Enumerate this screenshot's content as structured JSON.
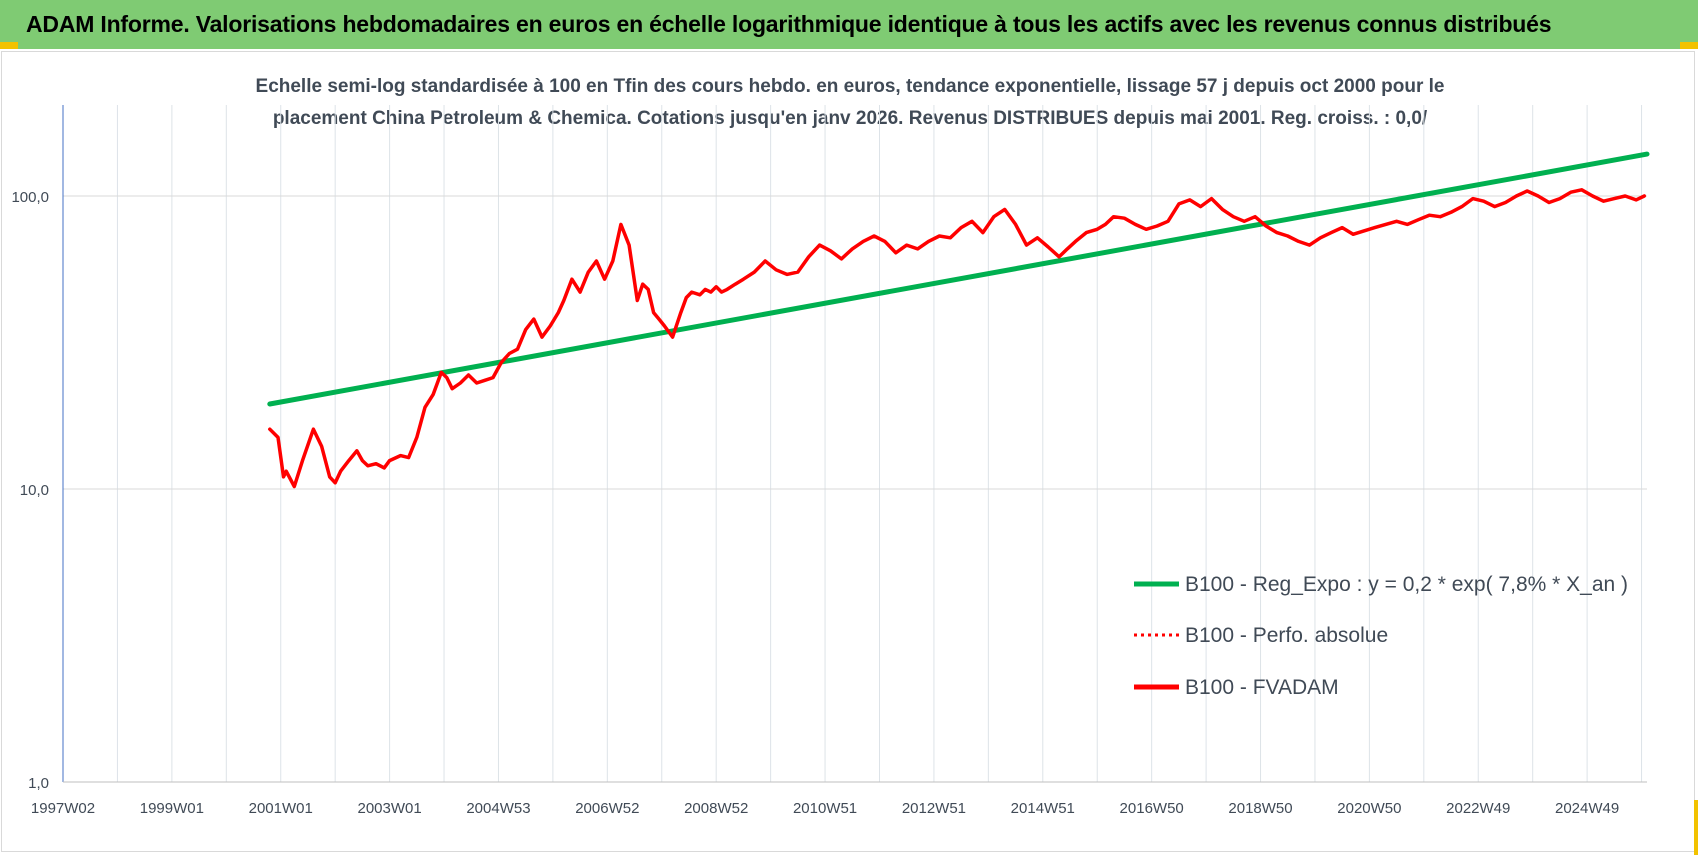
{
  "header": {
    "title": "ADAM Informe. Valorisations hebdomadaires en euros en échelle logarithmique identique à tous les actifs avec les revenus connus distribués"
  },
  "colors": {
    "header_bg": "#7fcb73",
    "trend": "#00b050",
    "series": "#ff0000",
    "grid": "#d9d9d9",
    "axis_text": "#404a56",
    "corner_accent": "#f2c200"
  },
  "chart_data": {
    "type": "line",
    "title_lines": [
      "Echelle semi-log standardisée à 100 en Tfin des cours hebdo. en euros, tendance exponentielle, lissage 57 j depuis oct 2000 pour le",
      "placement China Petroleum & Chemica. Cotations jusqu'en janv 2026.  Revenus DISTRIBUES depuis mai 2001. Reg. croiss. : 0,0/"
    ],
    "y_scale": "log",
    "ylim": [
      1,
      200
    ],
    "y_ticks": [
      {
        "value": 1,
        "label": "1,0"
      },
      {
        "value": 10,
        "label": "10,0"
      },
      {
        "value": 100,
        "label": "100,0"
      }
    ],
    "xlim": [
      1997.0,
      2026.1
    ],
    "x_ticks": [
      {
        "x": 1997.0,
        "label": "1997W02"
      },
      {
        "x": 1999.0,
        "label": "1999W01"
      },
      {
        "x": 2001.0,
        "label": "2001W01"
      },
      {
        "x": 2003.0,
        "label": "2003W01"
      },
      {
        "x": 2005.0,
        "label": "2004W53"
      },
      {
        "x": 2007.0,
        "label": "2006W52"
      },
      {
        "x": 2009.0,
        "label": "2008W52"
      },
      {
        "x": 2011.0,
        "label": "2010W51"
      },
      {
        "x": 2013.0,
        "label": "2012W51"
      },
      {
        "x": 2015.0,
        "label": "2014W51"
      },
      {
        "x": 2017.0,
        "label": "2016W50"
      },
      {
        "x": 2019.0,
        "label": "2018W50"
      },
      {
        "x": 2021.0,
        "label": "2020W50"
      },
      {
        "x": 2023.0,
        "label": "2022W49"
      },
      {
        "x": 2025.0,
        "label": "2024W49"
      }
    ],
    "legend_position": "right",
    "series": [
      {
        "name": "B100 - Reg_Expo : y = 0,2 * exp( 7,8% *  X_an )",
        "style": "solid",
        "color": "#00b050",
        "x": [
          2000.8,
          2026.1
        ],
        "y": [
          19.5,
          139
        ]
      },
      {
        "name": "B100 - Perfo. absolue",
        "style": "dotted",
        "color": "#ff0000",
        "x": [],
        "y": []
      },
      {
        "name": "B100 - FVADAM",
        "style": "solid",
        "color": "#ff0000",
        "x": [
          2000.8,
          2000.95,
          2001.05,
          2001.1,
          2001.25,
          2001.4,
          2001.6,
          2001.75,
          2001.9,
          2002.0,
          2002.1,
          2002.25,
          2002.4,
          2002.5,
          2002.6,
          2002.75,
          2002.9,
          2003.0,
          2003.2,
          2003.35,
          2003.5,
          2003.65,
          2003.8,
          2003.95,
          2004.05,
          2004.15,
          2004.3,
          2004.45,
          2004.6,
          2004.75,
          2004.9,
          2005.05,
          2005.2,
          2005.35,
          2005.5,
          2005.65,
          2005.8,
          2005.95,
          2006.1,
          2006.2,
          2006.35,
          2006.5,
          2006.65,
          2006.8,
          2006.95,
          2007.1,
          2007.25,
          2007.4,
          2007.55,
          2007.65,
          2007.75,
          2007.85,
          2007.95,
          2008.05,
          2008.2,
          2008.35,
          2008.45,
          2008.55,
          2008.7,
          2008.8,
          2008.9,
          2009.0,
          2009.1,
          2009.2,
          2009.35,
          2009.5,
          2009.7,
          2009.9,
          2010.1,
          2010.3,
          2010.5,
          2010.7,
          2010.9,
          2011.1,
          2011.3,
          2011.5,
          2011.7,
          2011.9,
          2012.1,
          2012.3,
          2012.5,
          2012.7,
          2012.9,
          2013.1,
          2013.3,
          2013.5,
          2013.7,
          2013.9,
          2014.1,
          2014.3,
          2014.5,
          2014.7,
          2014.9,
          2015.1,
          2015.3,
          2015.45,
          2015.6,
          2015.8,
          2016.0,
          2016.15,
          2016.3,
          2016.5,
          2016.7,
          2016.9,
          2017.1,
          2017.3,
          2017.5,
          2017.7,
          2017.9,
          2018.1,
          2018.3,
          2018.5,
          2018.7,
          2018.9,
          2019.1,
          2019.3,
          2019.5,
          2019.7,
          2019.9,
          2020.1,
          2020.3,
          2020.5,
          2020.7,
          2020.9,
          2021.1,
          2021.3,
          2021.5,
          2021.7,
          2021.9,
          2022.1,
          2022.3,
          2022.5,
          2022.7,
          2022.9,
          2023.1,
          2023.3,
          2023.5,
          2023.7,
          2023.9,
          2024.1,
          2024.3,
          2024.5,
          2024.7,
          2024.9,
          2025.1,
          2025.3,
          2025.5,
          2025.7,
          2025.9,
          2026.05
        ],
        "y": [
          16,
          15,
          11,
          11.5,
          10.2,
          12.5,
          16,
          14,
          11,
          10.5,
          11.5,
          12.5,
          13.5,
          12.5,
          12,
          12.2,
          11.8,
          12.5,
          13,
          12.8,
          15,
          19,
          21,
          25,
          24,
          22,
          23,
          24.5,
          23,
          23.5,
          24,
          27,
          29,
          30,
          35,
          38,
          33,
          36,
          40,
          44,
          52,
          47,
          55,
          60,
          52,
          60,
          80,
          68,
          44,
          50,
          48,
          40,
          38,
          36,
          33,
          40,
          45,
          47,
          46,
          48,
          47,
          49,
          47,
          48,
          50,
          52,
          55,
          60,
          56,
          54,
          55,
          62,
          68,
          65,
          61,
          66,
          70,
          73,
          70,
          64,
          68,
          66,
          70,
          73,
          72,
          78,
          82,
          75,
          85,
          90,
          80,
          68,
          72,
          67,
          62,
          66,
          70,
          75,
          77,
          80,
          85,
          84,
          80,
          77,
          79,
          82,
          94,
          97,
          92,
          98,
          90,
          85,
          82,
          85,
          79,
          75,
          73,
          70,
          68,
          72,
          75,
          78,
          74,
          76,
          78,
          80,
          82,
          80,
          83,
          86,
          85,
          88,
          92,
          98,
          96,
          92,
          95,
          100,
          104,
          100,
          95,
          98,
          103,
          105,
          100,
          96,
          98,
          100,
          97,
          100
        ]
      }
    ]
  }
}
